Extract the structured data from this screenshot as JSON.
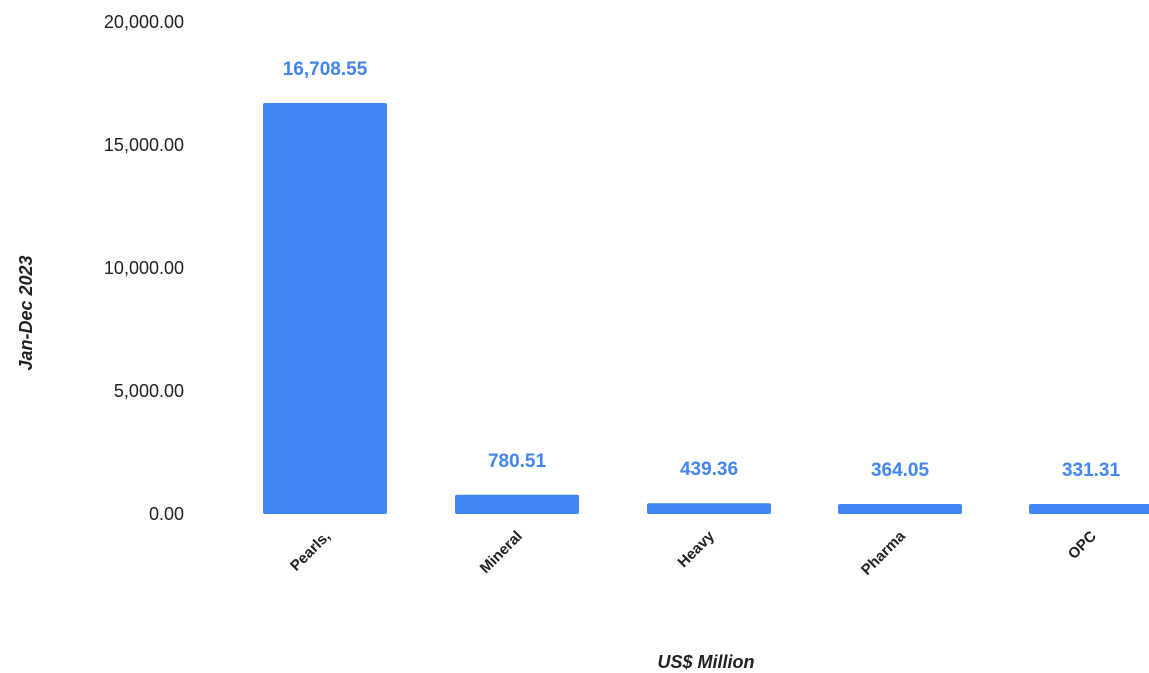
{
  "chart_data": {
    "type": "bar",
    "categories": [
      "Pearls,",
      "Mineral",
      "Heavy",
      "Pharma",
      "OPC"
    ],
    "values": [
      16708.55,
      780.51,
      439.36,
      364.05,
      331.31
    ],
    "data_labels": [
      "16,708.55",
      "780.51",
      "439.36",
      "364.05",
      "331.31"
    ],
    "y_ticks": [
      0,
      5000,
      10000,
      15000,
      20000
    ],
    "y_tick_labels": [
      "0.00",
      "5,000.00",
      "10,000.00",
      "15,000.00",
      "20,000.00"
    ],
    "ylim": [
      0,
      20000
    ],
    "xlabel": "US$ Million",
    "ylabel": "Jan-Dec 2023",
    "title": "",
    "grid": false,
    "bar_color": "#4285f4",
    "label_color": "#4285f4"
  }
}
